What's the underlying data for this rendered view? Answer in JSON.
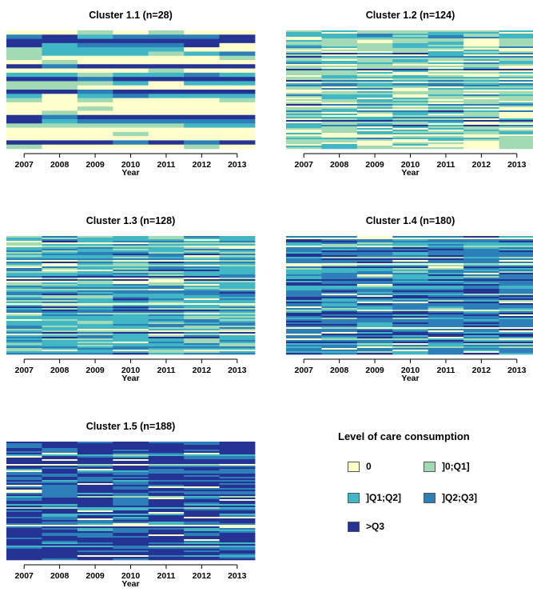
{
  "colors": {
    "zero": "#ffffcc",
    "q0_q1": "#a1dab4",
    "q1_q2": "#41b6c4",
    "q2_q3": "#2c7fb8",
    "gt_q3": "#253494"
  },
  "legend": {
    "title": "Level of care consumption",
    "items": [
      {
        "key": "zero",
        "label": "0"
      },
      {
        "key": "q0_q1",
        "label": "]0;Q1]"
      },
      {
        "key": "q1_q2",
        "label": "]Q1;Q2]"
      },
      {
        "key": "q2_q3",
        "label": "]Q2;Q3]"
      },
      {
        "key": "gt_q3",
        "label": ">Q3"
      }
    ]
  },
  "chart_data": [
    {
      "type": "heatmap",
      "title": "Cluster 1.1 (n=28)",
      "n": 28,
      "xlabel": "Year",
      "categories": [
        "2007",
        "2008",
        "2009",
        "2010",
        "2011",
        "2012",
        "2013"
      ],
      "level_weights": [
        0.55,
        0.13,
        0.08,
        0.09,
        0.15
      ],
      "seed": 11
    },
    {
      "type": "heatmap",
      "title": "Cluster 1.2 (n=124)",
      "n": 124,
      "xlabel": "Year",
      "categories": [
        "2007",
        "2008",
        "2009",
        "2010",
        "2011",
        "2012",
        "2013"
      ],
      "level_weights": [
        0.05,
        0.58,
        0.24,
        0.08,
        0.05
      ],
      "seed": 12
    },
    {
      "type": "heatmap",
      "title": "Cluster 1.3 (n=128)",
      "n": 128,
      "xlabel": "Year",
      "categories": [
        "2007",
        "2008",
        "2009",
        "2010",
        "2011",
        "2012",
        "2013"
      ],
      "level_weights": [
        0.03,
        0.22,
        0.52,
        0.18,
        0.05
      ],
      "seed": 13
    },
    {
      "type": "heatmap",
      "title": "Cluster 1.4 (n=180)",
      "n": 180,
      "xlabel": "Year",
      "categories": [
        "2007",
        "2008",
        "2009",
        "2010",
        "2011",
        "2012",
        "2013"
      ],
      "level_weights": [
        0.03,
        0.06,
        0.22,
        0.49,
        0.2
      ],
      "seed": 14
    },
    {
      "type": "heatmap",
      "title": "Cluster 1.5 (n=188)",
      "n": 188,
      "xlabel": "Year",
      "categories": [
        "2007",
        "2008",
        "2009",
        "2010",
        "2011",
        "2012",
        "2013"
      ],
      "level_weights": [
        0.03,
        0.02,
        0.05,
        0.18,
        0.72
      ],
      "seed": 15
    }
  ]
}
